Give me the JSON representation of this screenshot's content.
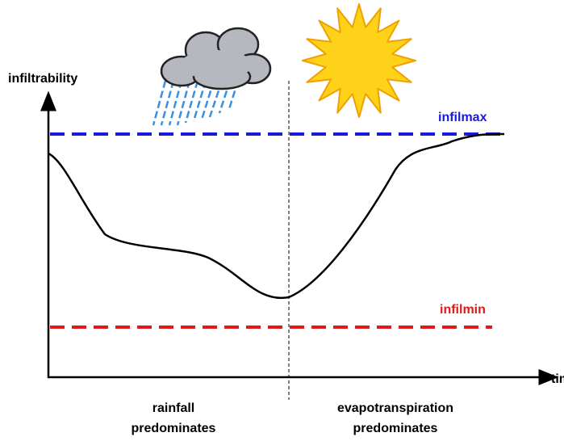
{
  "y_axis_label": "infiltrability",
  "x_axis_label": "time",
  "upper_line_label": "infilmax",
  "lower_line_label": "infilmin",
  "left_region": [
    "rainfall",
    "predominates"
  ],
  "right_region": [
    "evapotranspiration",
    "predominates"
  ]
}
